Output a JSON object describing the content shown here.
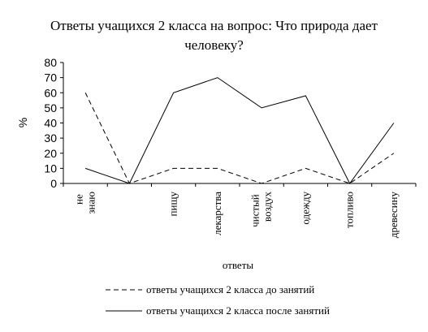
{
  "chart_data": {
    "type": "line",
    "title": "Ответы учащихся 2 класса на вопрос: Что природа дает человеку?",
    "x_label": "ответы",
    "y_label": "%",
    "categories": [
      "не знаю",
      null,
      "пищу",
      "лекарства",
      "чистый воздух",
      "одежду",
      "топливо",
      "древесину"
    ],
    "series": [
      {
        "name": "ответы учащихся 2 класса до занятий",
        "color": "#000000",
        "dash": true,
        "values": [
          60,
          0,
          10,
          10,
          0,
          10,
          0,
          20
        ]
      },
      {
        "name": "ответы учащихся 2 класса после занятий",
        "color": "#000000",
        "dash": false,
        "values": [
          10,
          0,
          60,
          70,
          50,
          58,
          0,
          40
        ]
      }
    ],
    "ylim": [
      0,
      80
    ],
    "yticks": [
      0,
      10,
      20,
      30,
      40,
      50,
      60,
      70,
      80
    ]
  }
}
